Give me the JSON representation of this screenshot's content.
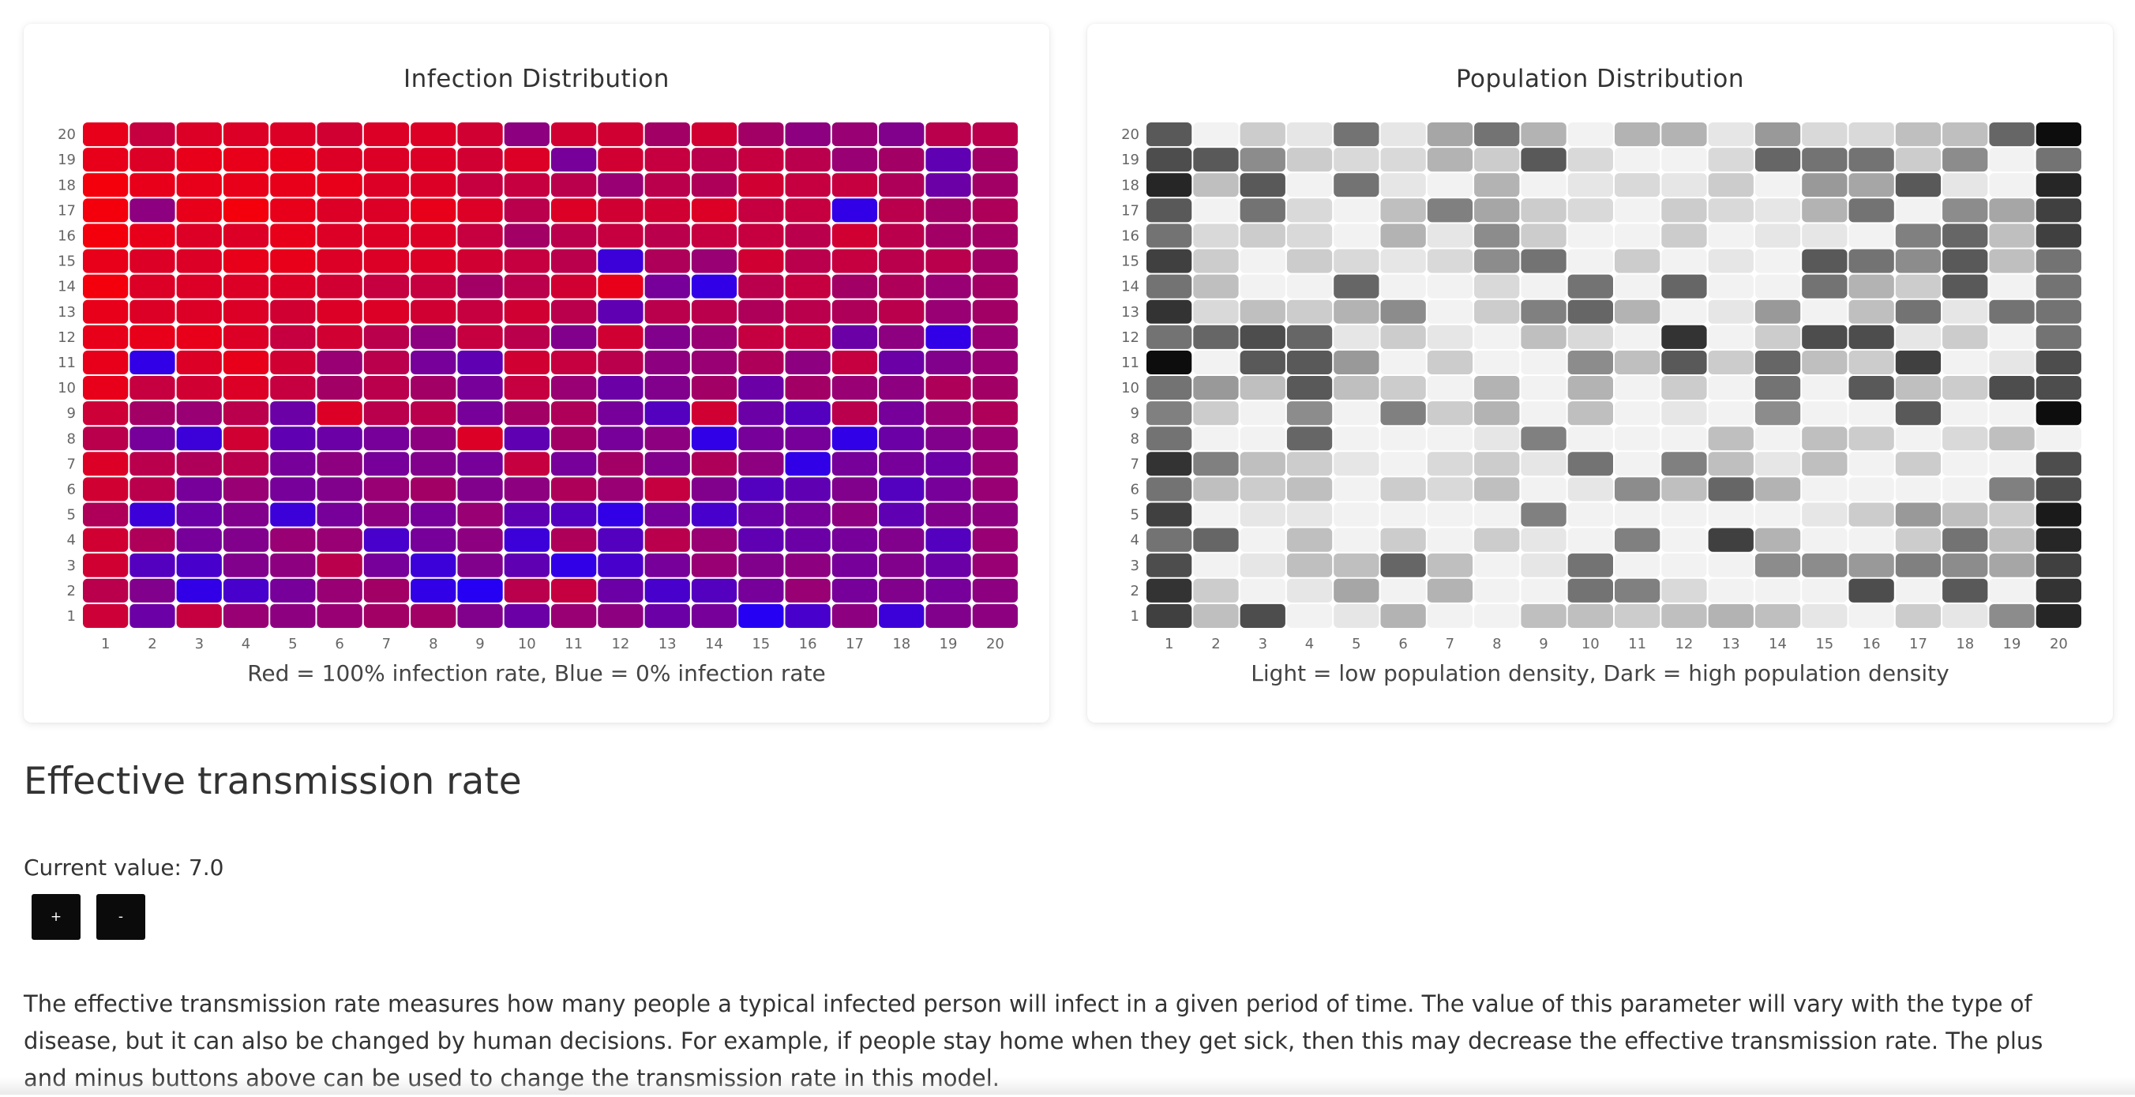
{
  "chart_data": [
    {
      "type": "heatmap",
      "title": "Infection Distribution",
      "caption": "Red = 100% infection rate, Blue = 0% infection rate",
      "x_labels": [
        "1",
        "2",
        "3",
        "4",
        "5",
        "6",
        "7",
        "8",
        "9",
        "10",
        "11",
        "12",
        "13",
        "14",
        "15",
        "16",
        "17",
        "18",
        "19",
        "20"
      ],
      "y_labels": [
        "1",
        "2",
        "3",
        "4",
        "5",
        "6",
        "7",
        "8",
        "9",
        "10",
        "11",
        "12",
        "13",
        "14",
        "15",
        "16",
        "17",
        "18",
        "19",
        "20"
      ],
      "value_range": [
        0,
        1
      ],
      "color_low": "#1a00ff",
      "color_high": "#ff0000",
      "values": [
        [
          0.78,
          0.35,
          0.75,
          0.55,
          0.5,
          0.55,
          0.6,
          0.6,
          0.45,
          0.35,
          0.55,
          0.5,
          0.35,
          0.4,
          0.05,
          0.2,
          0.5,
          0.15,
          0.45,
          0.5
        ],
        [
          0.7,
          0.45,
          0.1,
          0.2,
          0.4,
          0.55,
          0.6,
          0.1,
          0.05,
          0.7,
          0.75,
          0.35,
          0.2,
          0.25,
          0.4,
          0.55,
          0.4,
          0.45,
          0.4,
          0.5
        ],
        [
          0.8,
          0.25,
          0.2,
          0.45,
          0.5,
          0.7,
          0.4,
          0.15,
          0.45,
          0.3,
          0.1,
          0.2,
          0.4,
          0.55,
          0.45,
          0.5,
          0.4,
          0.45,
          0.35,
          0.55
        ],
        [
          0.8,
          0.65,
          0.4,
          0.45,
          0.55,
          0.55,
          0.2,
          0.4,
          0.5,
          0.15,
          0.65,
          0.25,
          0.7,
          0.55,
          0.3,
          0.35,
          0.4,
          0.45,
          0.25,
          0.55
        ],
        [
          0.65,
          0.15,
          0.35,
          0.45,
          0.15,
          0.4,
          0.5,
          0.4,
          0.55,
          0.3,
          0.25,
          0.1,
          0.4,
          0.2,
          0.35,
          0.4,
          0.5,
          0.3,
          0.45,
          0.5
        ],
        [
          0.8,
          0.7,
          0.4,
          0.55,
          0.4,
          0.45,
          0.55,
          0.6,
          0.45,
          0.5,
          0.65,
          0.55,
          0.75,
          0.45,
          0.25,
          0.3,
          0.45,
          0.25,
          0.4,
          0.55
        ],
        [
          0.85,
          0.7,
          0.65,
          0.7,
          0.4,
          0.5,
          0.4,
          0.45,
          0.4,
          0.75,
          0.4,
          0.6,
          0.45,
          0.65,
          0.5,
          0.1,
          0.4,
          0.4,
          0.35,
          0.55
        ],
        [
          0.7,
          0.4,
          0.15,
          0.8,
          0.3,
          0.35,
          0.4,
          0.5,
          0.85,
          0.3,
          0.6,
          0.4,
          0.5,
          0.1,
          0.4,
          0.4,
          0.1,
          0.35,
          0.45,
          0.55
        ],
        [
          0.78,
          0.6,
          0.55,
          0.7,
          0.35,
          0.85,
          0.7,
          0.7,
          0.4,
          0.6,
          0.65,
          0.4,
          0.25,
          0.8,
          0.35,
          0.25,
          0.7,
          0.4,
          0.55,
          0.65
        ],
        [
          0.9,
          0.75,
          0.8,
          0.85,
          0.75,
          0.6,
          0.7,
          0.6,
          0.4,
          0.75,
          0.55,
          0.35,
          0.45,
          0.6,
          0.35,
          0.6,
          0.55,
          0.5,
          0.65,
          0.6
        ],
        [
          0.9,
          0.1,
          0.85,
          0.9,
          0.8,
          0.55,
          0.7,
          0.4,
          0.3,
          0.8,
          0.75,
          0.7,
          0.5,
          0.55,
          0.65,
          0.5,
          0.75,
          0.35,
          0.45,
          0.55
        ],
        [
          0.9,
          0.9,
          0.9,
          0.85,
          0.75,
          0.8,
          0.7,
          0.5,
          0.75,
          0.7,
          0.45,
          0.8,
          0.45,
          0.55,
          0.75,
          0.75,
          0.35,
          0.5,
          0.1,
          0.55
        ],
        [
          0.9,
          0.85,
          0.85,
          0.85,
          0.8,
          0.85,
          0.85,
          0.8,
          0.75,
          0.8,
          0.7,
          0.3,
          0.7,
          0.7,
          0.65,
          0.7,
          0.65,
          0.7,
          0.55,
          0.6
        ],
        [
          0.95,
          0.85,
          0.85,
          0.85,
          0.85,
          0.8,
          0.75,
          0.75,
          0.6,
          0.7,
          0.8,
          0.9,
          0.4,
          0.1,
          0.7,
          0.75,
          0.6,
          0.65,
          0.55,
          0.6
        ],
        [
          0.9,
          0.85,
          0.85,
          0.9,
          0.9,
          0.85,
          0.85,
          0.85,
          0.8,
          0.75,
          0.7,
          0.15,
          0.65,
          0.55,
          0.8,
          0.7,
          0.75,
          0.7,
          0.7,
          0.6
        ],
        [
          0.95,
          0.9,
          0.85,
          0.85,
          0.9,
          0.85,
          0.85,
          0.85,
          0.75,
          0.6,
          0.7,
          0.75,
          0.7,
          0.75,
          0.75,
          0.7,
          0.8,
          0.7,
          0.6,
          0.6
        ],
        [
          0.95,
          0.5,
          0.9,
          0.95,
          0.9,
          0.85,
          0.85,
          0.9,
          0.85,
          0.7,
          0.85,
          0.8,
          0.8,
          0.85,
          0.75,
          0.75,
          0.1,
          0.7,
          0.6,
          0.65
        ],
        [
          0.95,
          0.9,
          0.9,
          0.9,
          0.9,
          0.9,
          0.85,
          0.85,
          0.75,
          0.75,
          0.7,
          0.55,
          0.7,
          0.65,
          0.8,
          0.75,
          0.75,
          0.65,
          0.35,
          0.6
        ],
        [
          0.9,
          0.85,
          0.9,
          0.9,
          0.9,
          0.85,
          0.85,
          0.85,
          0.8,
          0.85,
          0.4,
          0.8,
          0.75,
          0.7,
          0.75,
          0.7,
          0.55,
          0.6,
          0.3,
          0.6
        ],
        [
          0.9,
          0.75,
          0.85,
          0.85,
          0.85,
          0.8,
          0.85,
          0.85,
          0.8,
          0.5,
          0.8,
          0.8,
          0.6,
          0.8,
          0.6,
          0.5,
          0.55,
          0.45,
          0.7,
          0.7
        ]
      ]
    },
    {
      "type": "heatmap",
      "title": "Population Distribution",
      "caption": "Light = low population density, Dark = high population density",
      "x_labels": [
        "1",
        "2",
        "3",
        "4",
        "5",
        "6",
        "7",
        "8",
        "9",
        "10",
        "11",
        "12",
        "13",
        "14",
        "15",
        "16",
        "17",
        "18",
        "19",
        "20"
      ],
      "y_labels": [
        "1",
        "2",
        "3",
        "4",
        "5",
        "6",
        "7",
        "8",
        "9",
        "10",
        "11",
        "12",
        "13",
        "14",
        "15",
        "16",
        "17",
        "18",
        "19",
        "20"
      ],
      "value_range": [
        0,
        1
      ],
      "color_low": "#ffffff",
      "color_high": "#000000",
      "values": [
        [
          0.75,
          0.25,
          0.7,
          0.05,
          0.1,
          0.3,
          0.05,
          0.05,
          0.25,
          0.25,
          0.2,
          0.25,
          0.3,
          0.25,
          0.1,
          0.05,
          0.2,
          0.1,
          0.45,
          0.85
        ],
        [
          0.8,
          0.2,
          0.05,
          0.1,
          0.35,
          0.05,
          0.3,
          0.05,
          0.05,
          0.55,
          0.5,
          0.15,
          0.05,
          0.05,
          0.05,
          0.7,
          0.05,
          0.65,
          0.05,
          0.8
        ],
        [
          0.7,
          0.05,
          0.1,
          0.25,
          0.25,
          0.6,
          0.25,
          0.05,
          0.1,
          0.55,
          0.05,
          0.05,
          0.05,
          0.45,
          0.45,
          0.4,
          0.5,
          0.45,
          0.35,
          0.75
        ],
        [
          0.55,
          0.6,
          0.05,
          0.25,
          0.05,
          0.2,
          0.05,
          0.2,
          0.1,
          0.05,
          0.5,
          0.05,
          0.75,
          0.3,
          0.05,
          0.05,
          0.2,
          0.55,
          0.25,
          0.85
        ],
        [
          0.75,
          0.05,
          0.1,
          0.1,
          0.05,
          0.05,
          0.05,
          0.05,
          0.5,
          0.05,
          0.05,
          0.05,
          0.05,
          0.05,
          0.1,
          0.2,
          0.4,
          0.25,
          0.2,
          0.9
        ],
        [
          0.55,
          0.25,
          0.2,
          0.25,
          0.05,
          0.2,
          0.15,
          0.25,
          0.05,
          0.1,
          0.45,
          0.25,
          0.6,
          0.3,
          0.05,
          0.05,
          0.05,
          0.05,
          0.5,
          0.7
        ],
        [
          0.8,
          0.5,
          0.25,
          0.2,
          0.1,
          0.05,
          0.15,
          0.2,
          0.1,
          0.55,
          0.05,
          0.5,
          0.25,
          0.1,
          0.25,
          0.05,
          0.2,
          0.05,
          0.05,
          0.7
        ],
        [
          0.55,
          0.05,
          0.05,
          0.6,
          0.05,
          0.05,
          0.05,
          0.1,
          0.5,
          0.05,
          0.05,
          0.05,
          0.25,
          0.05,
          0.25,
          0.2,
          0.05,
          0.15,
          0.25,
          0.05
        ],
        [
          0.5,
          0.2,
          0.05,
          0.45,
          0.05,
          0.5,
          0.2,
          0.3,
          0.05,
          0.25,
          0.05,
          0.1,
          0.05,
          0.45,
          0.05,
          0.05,
          0.65,
          0.05,
          0.05,
          0.95
        ],
        [
          0.55,
          0.4,
          0.25,
          0.65,
          0.25,
          0.2,
          0.05,
          0.3,
          0.05,
          0.3,
          0.05,
          0.2,
          0.05,
          0.55,
          0.05,
          0.65,
          0.25,
          0.2,
          0.7,
          0.7
        ],
        [
          0.95,
          0.05,
          0.65,
          0.65,
          0.4,
          0.05,
          0.2,
          0.05,
          0.05,
          0.45,
          0.25,
          0.65,
          0.2,
          0.6,
          0.25,
          0.2,
          0.75,
          0.05,
          0.1,
          0.7
        ],
        [
          0.55,
          0.6,
          0.7,
          0.6,
          0.1,
          0.2,
          0.1,
          0.05,
          0.25,
          0.15,
          0.05,
          0.8,
          0.05,
          0.2,
          0.7,
          0.7,
          0.1,
          0.2,
          0.05,
          0.55
        ],
        [
          0.8,
          0.15,
          0.25,
          0.2,
          0.3,
          0.45,
          0.05,
          0.2,
          0.5,
          0.6,
          0.3,
          0.05,
          0.1,
          0.4,
          0.05,
          0.25,
          0.55,
          0.1,
          0.55,
          0.55
        ],
        [
          0.55,
          0.25,
          0.05,
          0.05,
          0.6,
          0.05,
          0.05,
          0.15,
          0.05,
          0.55,
          0.05,
          0.6,
          0.05,
          0.05,
          0.55,
          0.3,
          0.2,
          0.65,
          0.05,
          0.55
        ],
        [
          0.75,
          0.2,
          0.05,
          0.2,
          0.15,
          0.1,
          0.15,
          0.45,
          0.55,
          0.05,
          0.2,
          0.05,
          0.1,
          0.05,
          0.65,
          0.55,
          0.45,
          0.65,
          0.25,
          0.55
        ],
        [
          0.55,
          0.15,
          0.2,
          0.15,
          0.05,
          0.3,
          0.1,
          0.45,
          0.2,
          0.05,
          0.05,
          0.2,
          0.05,
          0.1,
          0.1,
          0.05,
          0.5,
          0.6,
          0.25,
          0.75
        ],
        [
          0.65,
          0.05,
          0.55,
          0.15,
          0.05,
          0.25,
          0.5,
          0.35,
          0.2,
          0.15,
          0.05,
          0.2,
          0.15,
          0.1,
          0.3,
          0.55,
          0.05,
          0.45,
          0.35,
          0.75
        ],
        [
          0.85,
          0.25,
          0.65,
          0.05,
          0.55,
          0.1,
          0.05,
          0.3,
          0.05,
          0.1,
          0.15,
          0.1,
          0.2,
          0.05,
          0.4,
          0.35,
          0.65,
          0.1,
          0.05,
          0.85
        ],
        [
          0.7,
          0.65,
          0.45,
          0.2,
          0.15,
          0.15,
          0.3,
          0.2,
          0.65,
          0.15,
          0.05,
          0.05,
          0.15,
          0.6,
          0.55,
          0.55,
          0.2,
          0.45,
          0.05,
          0.55
        ],
        [
          0.65,
          0.05,
          0.2,
          0.1,
          0.55,
          0.1,
          0.35,
          0.55,
          0.3,
          0.05,
          0.3,
          0.3,
          0.1,
          0.4,
          0.15,
          0.15,
          0.25,
          0.25,
          0.6,
          0.95
        ]
      ]
    }
  ],
  "section": {
    "title": "Effective transmission rate",
    "current_value": "Current value: 7.0",
    "plus_label": "+",
    "minus_label": "-",
    "description": "The effective transmission rate measures how many people a typical infected person will infect in a given period of time. The value of this parameter will vary with the type of disease, but it can also be changed by human decisions. For example, if people stay home when they get sick, then this may decrease the effective transmission rate. The plus and minus buttons above can be used to change the transmission rate in this model."
  }
}
